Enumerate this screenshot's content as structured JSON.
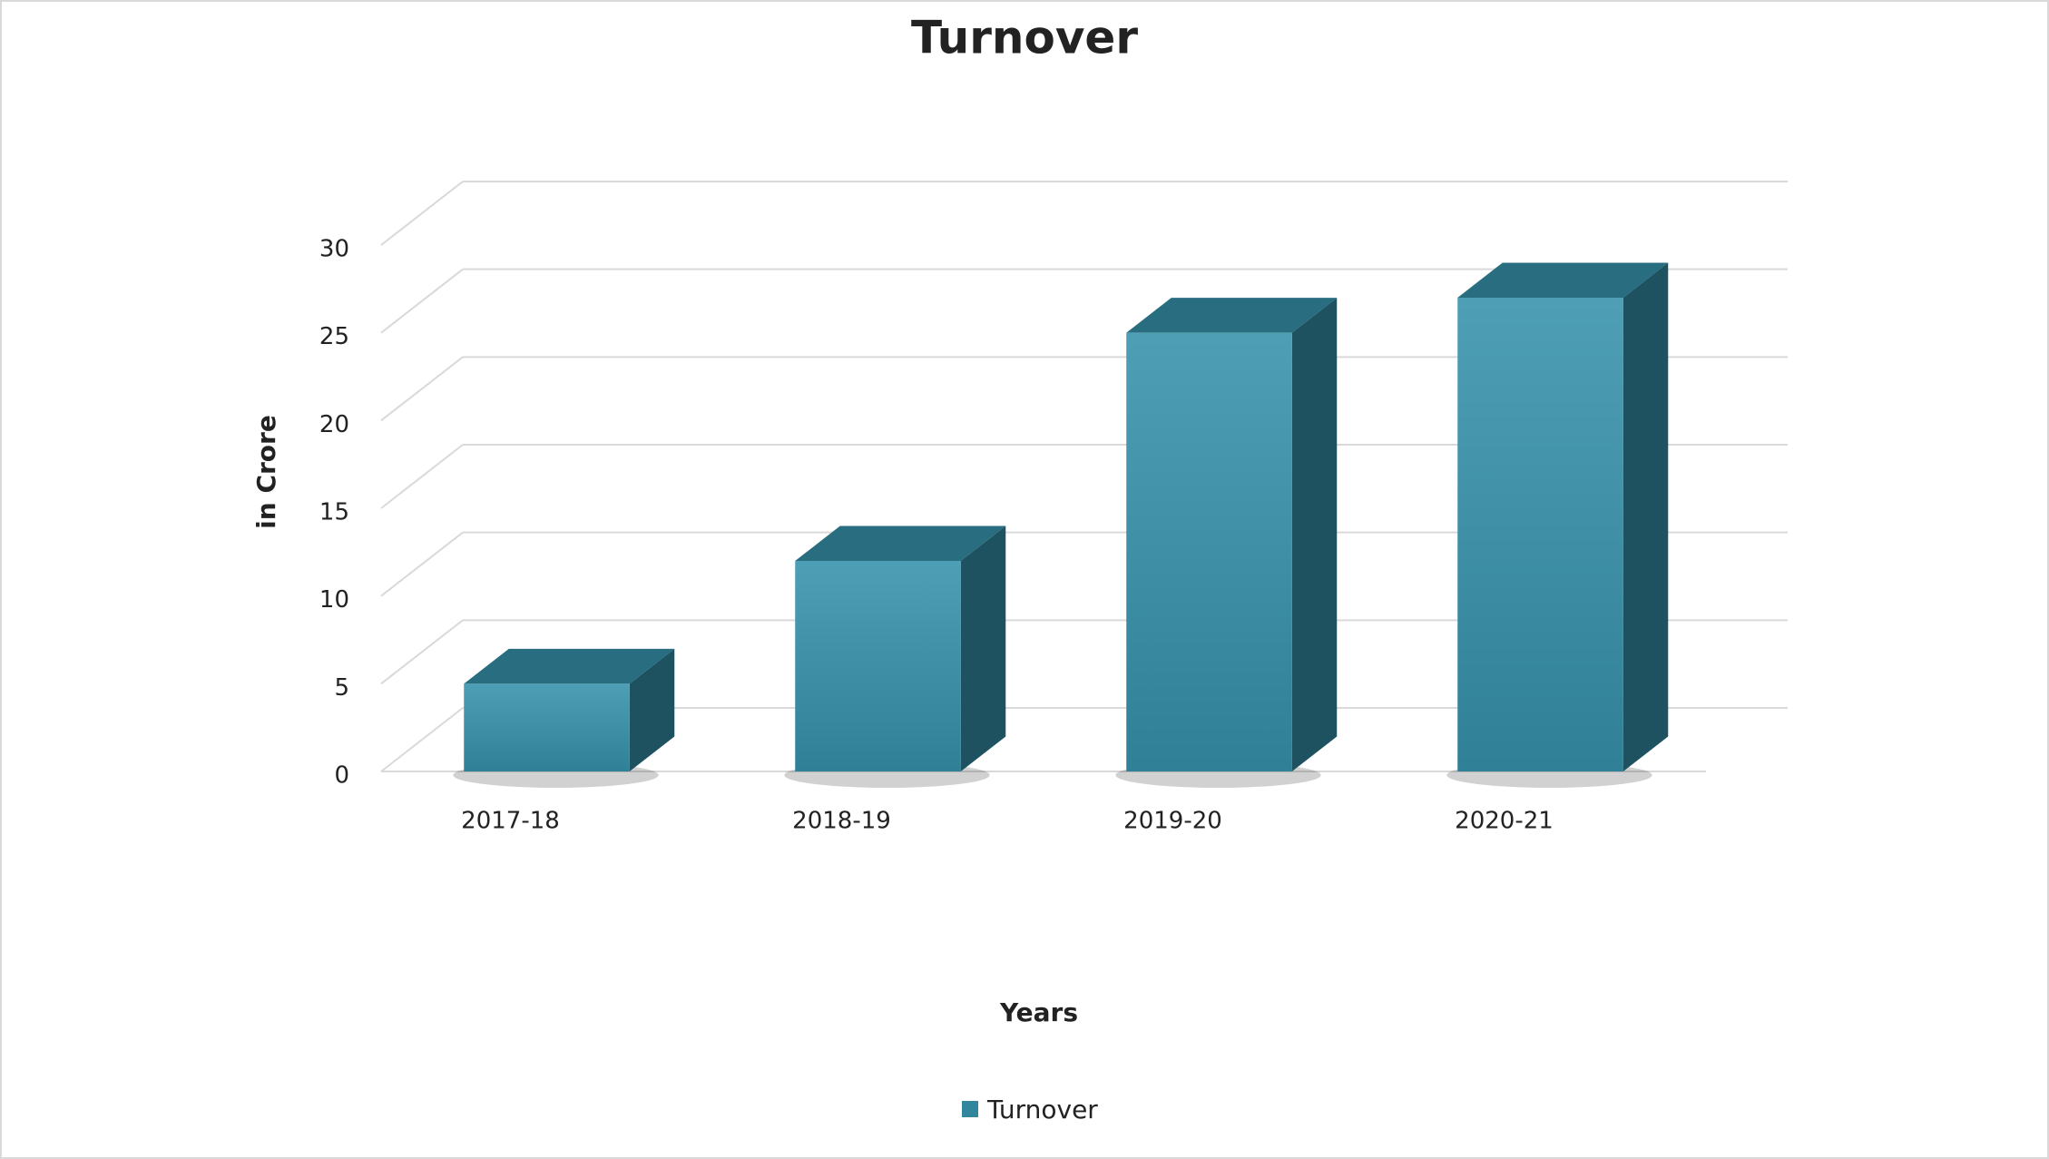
{
  "chart_data": {
    "type": "bar3d",
    "title": "Turnover",
    "x_label": "Years",
    "y_label": "in Crore",
    "categories": [
      "2017-18",
      "2018-19",
      "2019-20",
      "2020-21"
    ],
    "series": [
      {
        "name": "Turnover",
        "color": "#31859c",
        "values": [
          5,
          12,
          25,
          27
        ]
      }
    ],
    "ylim": [
      0,
      30
    ],
    "yticks": [
      0,
      5,
      10,
      15,
      20,
      25,
      30
    ],
    "grid": true,
    "legend": "bottom"
  }
}
